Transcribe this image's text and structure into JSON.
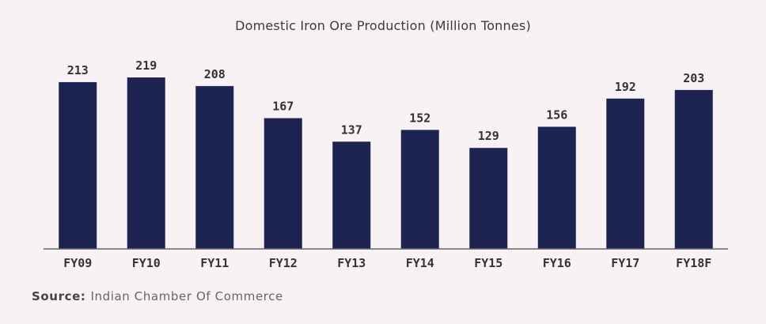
{
  "chart_data": {
    "type": "bar",
    "title": "Domestic Iron Ore Production (Million Tonnes)",
    "categories": [
      "FY09",
      "FY10",
      "FY11",
      "FY12",
      "FY13",
      "FY14",
      "FY15",
      "FY16",
      "FY17",
      "FY18F"
    ],
    "values": [
      213,
      219,
      208,
      167,
      137,
      152,
      129,
      156,
      192,
      203
    ],
    "xlabel": "",
    "ylabel": "",
    "ylim": [
      0,
      219
    ],
    "grid": false,
    "bar_color": "#1e2452",
    "axis_color": "#666666",
    "data_labels": true
  },
  "source": {
    "label": "Source:",
    "text": "Indian Chamber Of Commerce"
  }
}
